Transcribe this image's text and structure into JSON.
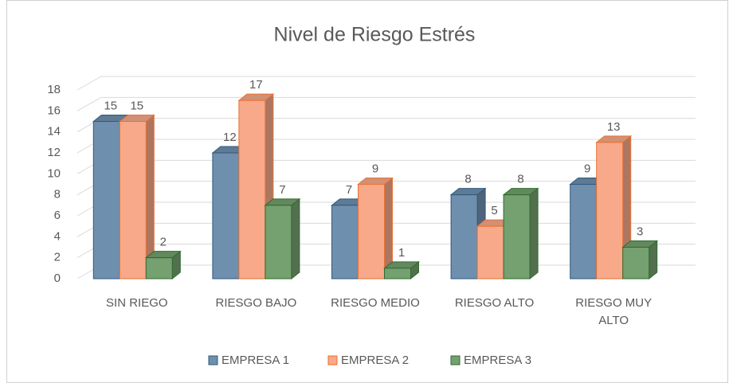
{
  "chart_data": {
    "type": "bar3d",
    "title": "Nivel de Riesgo Estrés",
    "categories": [
      "SIN RIEGO",
      "RIESGO BAJO",
      "RIESGO MEDIO",
      "RIESGO ALTO",
      "RIESGO MUY ALTO"
    ],
    "series": [
      {
        "name": "EMPRESA 1",
        "color": "#6f8fae",
        "values": [
          15,
          12,
          7,
          8,
          9
        ]
      },
      {
        "name": "EMPRESA 2",
        "color": "#f7a98a",
        "values": [
          15,
          17,
          9,
          5,
          13
        ]
      },
      {
        "name": "EMPRESA 3",
        "color": "#75a06f",
        "values": [
          2,
          7,
          1,
          8,
          3
        ]
      }
    ],
    "ylim": [
      0,
      18
    ],
    "yticks": [
      0,
      2,
      4,
      6,
      8,
      10,
      12,
      14,
      16,
      18
    ],
    "grid": true,
    "legend": "bottom"
  }
}
